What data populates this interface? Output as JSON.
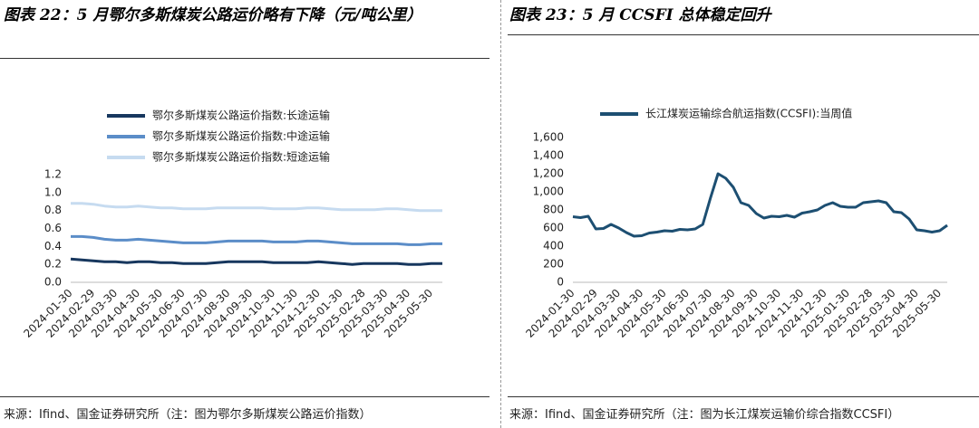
{
  "chart_data": [
    {
      "type": "line",
      "title": "图表 22：5 月鄂尔多斯煤炭公路运价略有下降（元/吨公里）",
      "source": "来源：Ifind、国金证券研究所（注：图为鄂尔多斯煤炭公路运价指数）",
      "categories": [
        "2024-01-30",
        null,
        "2024-02-29",
        null,
        "2024-03-30",
        null,
        "2024-04-30",
        null,
        "2024-05-30",
        null,
        "2024-06-30",
        null,
        "2024-07-30",
        null,
        "2024-08-30",
        null,
        "2024-09-30",
        null,
        "2024-10-30",
        null,
        "2024-11-30",
        null,
        "2024-12-30",
        null,
        "2025-01-30",
        null,
        "2025-02-28",
        null,
        "2025-03-30",
        null,
        "2025-04-30",
        null,
        "2025-05-30",
        null
      ],
      "series": [
        {
          "name": "鄂尔多斯煤炭公路运价指数:长途运输",
          "color": "#17375e",
          "values": [
            0.26,
            0.25,
            0.24,
            0.23,
            0.23,
            0.22,
            0.23,
            0.23,
            0.22,
            0.22,
            0.21,
            0.21,
            0.21,
            0.22,
            0.23,
            0.23,
            0.23,
            0.23,
            0.22,
            0.22,
            0.22,
            0.22,
            0.23,
            0.22,
            0.21,
            0.2,
            0.21,
            0.21,
            0.21,
            0.21,
            0.2,
            0.2,
            0.21,
            0.21
          ]
        },
        {
          "name": "鄂尔多斯煤炭公路运价指数:中途运输",
          "color": "#5b8dc8",
          "values": [
            0.51,
            0.51,
            0.5,
            0.48,
            0.47,
            0.47,
            0.48,
            0.47,
            0.46,
            0.45,
            0.44,
            0.44,
            0.44,
            0.45,
            0.46,
            0.46,
            0.46,
            0.46,
            0.45,
            0.45,
            0.45,
            0.46,
            0.46,
            0.45,
            0.44,
            0.43,
            0.43,
            0.43,
            0.43,
            0.43,
            0.42,
            0.42,
            0.43,
            0.43
          ]
        },
        {
          "name": "鄂尔多斯煤炭公路运价指数:短途运输",
          "color": "#c6dbf0",
          "values": [
            0.88,
            0.88,
            0.87,
            0.85,
            0.84,
            0.84,
            0.85,
            0.84,
            0.83,
            0.83,
            0.82,
            0.82,
            0.82,
            0.83,
            0.83,
            0.83,
            0.83,
            0.83,
            0.82,
            0.82,
            0.82,
            0.83,
            0.83,
            0.82,
            0.81,
            0.81,
            0.81,
            0.81,
            0.82,
            0.82,
            0.81,
            0.8,
            0.8,
            0.8
          ]
        }
      ],
      "ylim": [
        0,
        1.2
      ],
      "yticks": [
        {
          "value": 0,
          "label": "0.0"
        },
        {
          "value": 0.2,
          "label": "0.2"
        },
        {
          "value": 0.4,
          "label": "0.4"
        },
        {
          "value": 0.6,
          "label": "0.6"
        },
        {
          "value": 0.8,
          "label": "0.8"
        },
        {
          "value": 1,
          "label": "1.0"
        },
        {
          "value": 1.2,
          "label": "1.2"
        }
      ],
      "grid": false
    },
    {
      "type": "line",
      "title": "图表 23：5 月 CCSFI 总体稳定回升",
      "source": "来源：Ifind、国金证券研究所（注：图为长江煤炭运输价综合指数CCSFI）",
      "categories": [
        "2024-01-30",
        null,
        null,
        "2024-02-29",
        null,
        null,
        "2024-03-30",
        null,
        null,
        "2024-04-30",
        null,
        null,
        "2024-05-30",
        null,
        null,
        "2024-06-30",
        null,
        null,
        "2024-07-30",
        null,
        null,
        "2024-08-30",
        null,
        null,
        "2024-09-30",
        null,
        null,
        "2024-10-30",
        null,
        null,
        "2024-11-30",
        null,
        null,
        "2024-12-30",
        null,
        null,
        "2025-01-30",
        null,
        null,
        "2025-02-28",
        null,
        null,
        "2025-03-30",
        null,
        null,
        "2025-04-30",
        null,
        null,
        "2025-05-30",
        null
      ],
      "series": [
        {
          "name": "长江煤炭运输综合航运指数(CCSFI):当周值",
          "color": "#1d4f72",
          "values": [
            725,
            715,
            730,
            590,
            595,
            640,
            600,
            550,
            510,
            515,
            545,
            555,
            570,
            565,
            585,
            580,
            590,
            640,
            930,
            1200,
            1150,
            1050,
            880,
            850,
            760,
            710,
            730,
            725,
            740,
            720,
            765,
            780,
            800,
            850,
            880,
            840,
            830,
            830,
            880,
            890,
            900,
            880,
            780,
            770,
            700,
            580,
            570,
            555,
            570,
            630
          ]
        }
      ],
      "ylim": [
        0,
        1600
      ],
      "yticks": [
        0,
        200,
        400,
        600,
        800,
        {
          "value": 1000,
          "label": "1,000"
        },
        {
          "value": 1200,
          "label": "1,200"
        },
        {
          "value": 1400,
          "label": "1,400"
        },
        {
          "value": 1600,
          "label": "1,600"
        }
      ],
      "grid": false
    }
  ]
}
